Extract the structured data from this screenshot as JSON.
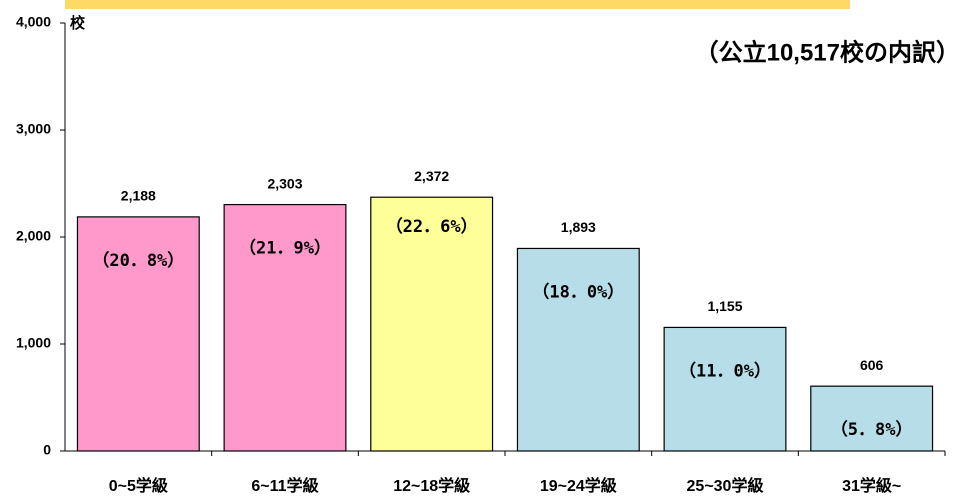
{
  "chart_data": {
    "type": "bar",
    "title": "（公立10,517校の内訳）",
    "y_unit": "校",
    "categories": [
      "0~5学級",
      "6~11学級",
      "12~18学級",
      "19~24学級",
      "25~30学級",
      "31学級~"
    ],
    "values": [
      2188,
      2303,
      2372,
      1893,
      1155,
      606
    ],
    "value_labels": [
      "2,188",
      "2,303",
      "2,372",
      "1,893",
      "1,155",
      "606"
    ],
    "share_labels": [
      "（20．8%）",
      "（21．9%）",
      "（22．6%）",
      "（18．0%）",
      "（11．0%）",
      "（5．8%）"
    ],
    "colors": [
      "#FF99CC",
      "#FF99CC",
      "#FFFF99",
      "#B7DEE8",
      "#B7DEE8",
      "#B7DEE8"
    ],
    "ylim": [
      0,
      4000
    ],
    "yticks": [
      0,
      {
        "value": 1000,
        "label": "1,000"
      },
      {
        "value": 2000,
        "label": "2,000"
      },
      {
        "value": 3000,
        "label": "3,000"
      },
      {
        "value": 4000,
        "label": "4,000"
      }
    ],
    "grid": false
  }
}
